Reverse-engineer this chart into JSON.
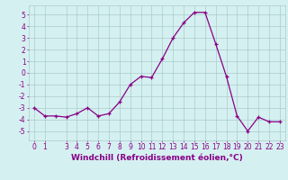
{
  "x": [
    0,
    1,
    2,
    3,
    4,
    5,
    6,
    7,
    8,
    9,
    10,
    11,
    12,
    13,
    14,
    15,
    16,
    17,
    18,
    19,
    20,
    21,
    22,
    23
  ],
  "y": [
    -3,
    -3.7,
    -3.7,
    -3.8,
    -3.5,
    -3,
    -3.7,
    -3.5,
    -2.5,
    -1.0,
    -0.3,
    -0.4,
    1.2,
    3.0,
    4.3,
    5.2,
    5.2,
    2.5,
    -0.3,
    -3.7,
    -5.0,
    -3.8,
    -4.2,
    -4.2
  ],
  "xlim": [
    -0.5,
    23.5
  ],
  "ylim": [
    -5.8,
    5.8
  ],
  "yticks": [
    -5,
    -4,
    -3,
    -2,
    -1,
    0,
    1,
    2,
    3,
    4,
    5
  ],
  "xticks": [
    0,
    1,
    3,
    4,
    5,
    6,
    7,
    8,
    9,
    10,
    11,
    12,
    13,
    14,
    15,
    16,
    17,
    18,
    19,
    20,
    21,
    22,
    23
  ],
  "line_color": "#880088",
  "marker": "+",
  "marker_size": 3,
  "bg_color": "#d5f0f0",
  "grid_color": "#aacccc",
  "xlabel": "Windchill (Refroidissement éolien,°C)",
  "xlabel_fontsize": 6.5,
  "tick_fontsize": 5.5,
  "line_width": 0.9
}
